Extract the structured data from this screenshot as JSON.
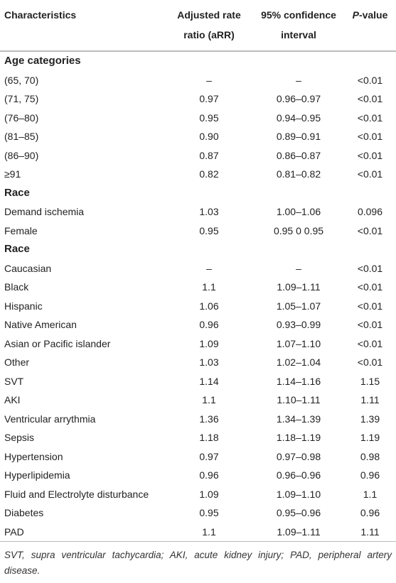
{
  "table": {
    "header": [
      "Characteristics",
      "Adjusted rate ratio (aRR)",
      "95% confidence interval",
      [
        "P",
        "-value"
      ]
    ],
    "rows": [
      [
        "Age categories"
      ],
      [
        "(65, 70)",
        "–",
        "–",
        "<0.01"
      ],
      [
        "(71, 75)",
        "0.97",
        "0.96–0.97",
        "<0.01"
      ],
      [
        "(76–80)",
        "0.95",
        "0.94–0.95",
        "<0.01"
      ],
      [
        "(81–85)",
        "0.90",
        "0.89–0.91",
        "<0.01"
      ],
      [
        "(86–90)",
        "0.87",
        "0.86–0.87",
        "<0.01"
      ],
      [
        "≥91",
        "0.82",
        "0.81–0.82",
        "<0.01"
      ],
      [
        "Race"
      ],
      [
        "Demand ischemia",
        "1.03",
        "1.00–1.06",
        "0.096"
      ],
      [
        "Female",
        "0.95",
        "0.95 0 0.95",
        "<0.01"
      ],
      [
        "Race"
      ],
      [
        "Caucasian",
        "–",
        "–",
        "<0.01"
      ],
      [
        "Black",
        "1.1",
        "1.09–1.11",
        "<0.01"
      ],
      [
        "Hispanic",
        "1.06",
        "1.05–1.07",
        "<0.01"
      ],
      [
        "Native American",
        "0.96",
        "0.93–0.99",
        "<0.01"
      ],
      [
        "Asian or Pacific islander",
        "1.09",
        "1.07–1.10",
        "<0.01"
      ],
      [
        "Other",
        "1.03",
        "1.02–1.04",
        "<0.01"
      ],
      [
        "SVT",
        "1.14",
        "1.14–1.16",
        "1.15"
      ],
      [
        "AKI",
        "1.1",
        "1.10–1.11",
        "1.11"
      ],
      [
        "Ventricular arrythmia",
        "1.36",
        "1.34–1.39",
        "1.39"
      ],
      [
        "Sepsis",
        "1.18",
        "1.18–1.19",
        "1.19"
      ],
      [
        "Hypertension",
        "0.97",
        "0.97–0.98",
        "0.98"
      ],
      [
        "Hyperlipidemia",
        "0.96",
        "0.96–0.96",
        "0.96"
      ],
      [
        "Fluid and Electrolyte disturbance",
        "1.09",
        "1.09–1.10",
        "1.1"
      ],
      [
        "Diabetes",
        "0.95",
        "0.95–0.96",
        "0.96"
      ],
      [
        "PAD",
        "1.1",
        "1.09–1.11",
        "1.11"
      ]
    ],
    "footnote": "SVT, supra ventricular tachycardia; AKI, acute kidney injury; PAD, peripheral artery disease."
  }
}
